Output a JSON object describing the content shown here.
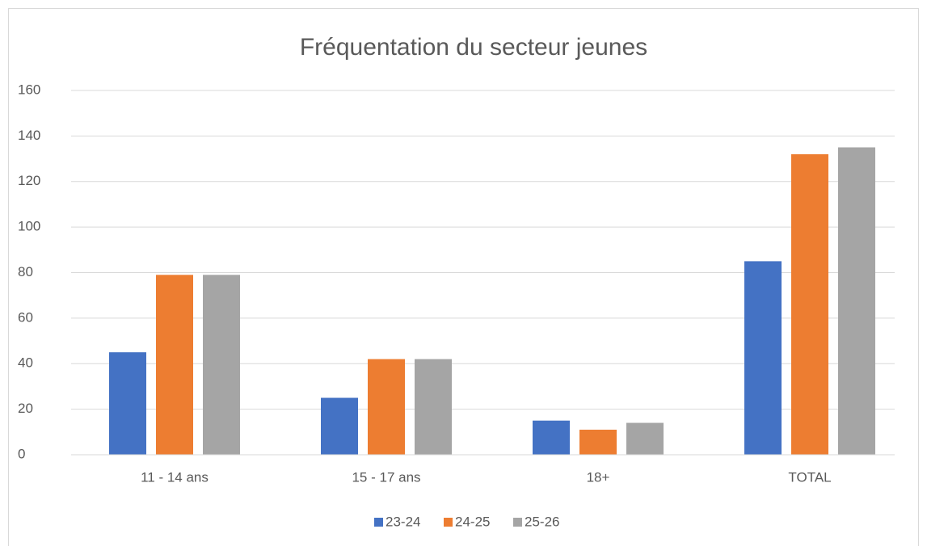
{
  "chart_data": {
    "type": "bar",
    "title": "Fréquentation du secteur jeunes",
    "categories": [
      "11 - 14 ans",
      "15 - 17 ans",
      "18+",
      "TOTAL"
    ],
    "series": [
      {
        "name": "23-24",
        "color": "#4472c4",
        "values": [
          45,
          25,
          15,
          85
        ]
      },
      {
        "name": "24-25",
        "color": "#ed7d31",
        "values": [
          79,
          42,
          11,
          132
        ]
      },
      {
        "name": "25-26",
        "color": "#a5a5a5",
        "values": [
          79,
          42,
          14,
          135
        ]
      }
    ],
    "ylim": [
      0,
      160
    ],
    "yticks": [
      0,
      20,
      40,
      60,
      80,
      100,
      120,
      140,
      160
    ],
    "grid": true,
    "legend": "bottom"
  }
}
